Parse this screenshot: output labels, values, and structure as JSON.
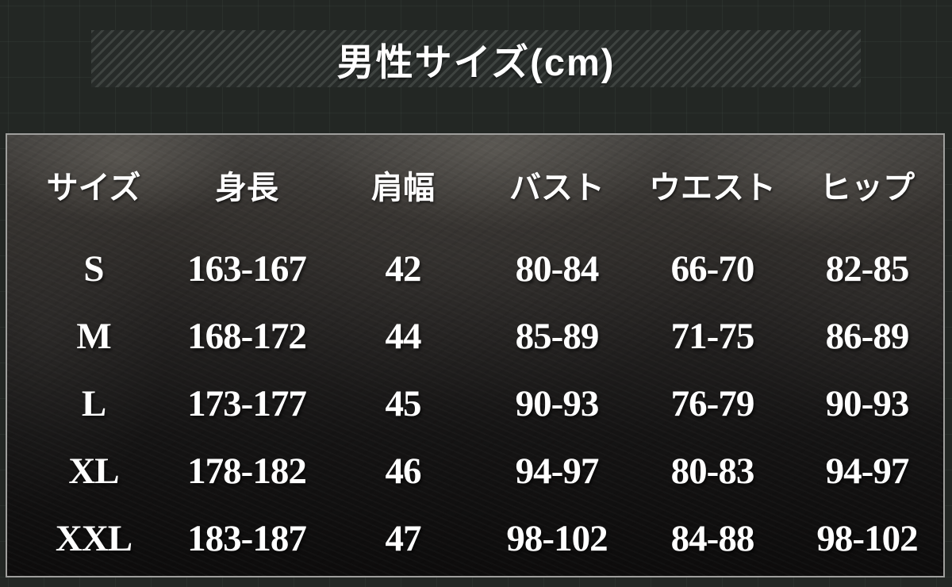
{
  "title": "男性サイズ(cm)",
  "chart_data": {
    "type": "table",
    "title": "男性サイズ(cm)",
    "unit": "cm",
    "columns": [
      "サイズ",
      "身長",
      "肩幅",
      "バスト",
      "ウエスト",
      "ヒップ"
    ],
    "rows": [
      [
        "S",
        "163-167",
        "42",
        "80-84",
        "66-70",
        "82-85"
      ],
      [
        "M",
        "168-172",
        "44",
        "85-89",
        "71-75",
        "86-89"
      ],
      [
        "L",
        "173-177",
        "45",
        "90-93",
        "76-79",
        "90-93"
      ],
      [
        "XL",
        "178-182",
        "46",
        "94-97",
        "80-83",
        "94-97"
      ],
      [
        "XXL",
        "183-187",
        "47",
        "98-102",
        "84-88",
        "98-102"
      ]
    ]
  },
  "colors": {
    "text": "#ffffff",
    "page_background": "#232724",
    "band_stripe_light": "#3e4340",
    "band_stripe_dark": "#272b29",
    "panel_border": "#9f9f9d"
  }
}
